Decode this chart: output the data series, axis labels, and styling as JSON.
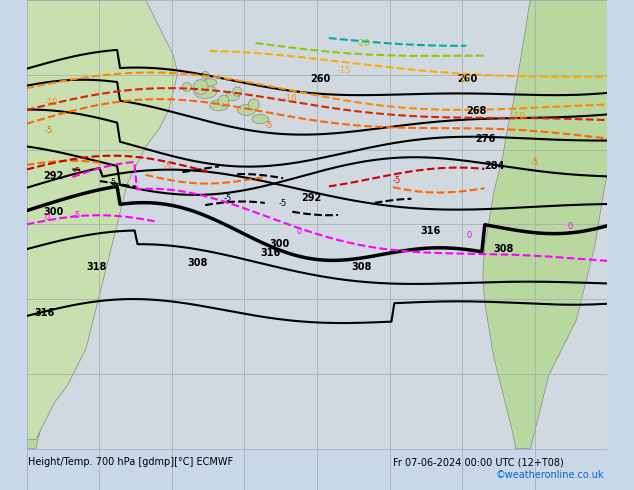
{
  "title_left": "Height/Temp. 700 hPa [gdmp][°C] ECMWF",
  "title_right": "Fr 07-06-2024 00:00 UTC (12+T08)",
  "copyright": "©weatheronline.co.uk",
  "bg_ocean": "#d0d8e0",
  "bg_land": "#b8d8a0",
  "bg_land2": "#c8e0b0",
  "grid_color": "#a0a8b0",
  "coast_color": "#888888",
  "height_line_color": "#000000",
  "figsize": [
    6.34,
    4.9
  ],
  "dpi": 100,
  "bottom_text_color": "#000000",
  "copyright_color": "#0066cc",
  "magenta": "#ff00ff",
  "orange1": "#ff6600",
  "orange2": "#ff8800",
  "orange3": "#ffaa00",
  "lime": "#88cc00",
  "cyan": "#00aaaa",
  "red": "#cc0000"
}
